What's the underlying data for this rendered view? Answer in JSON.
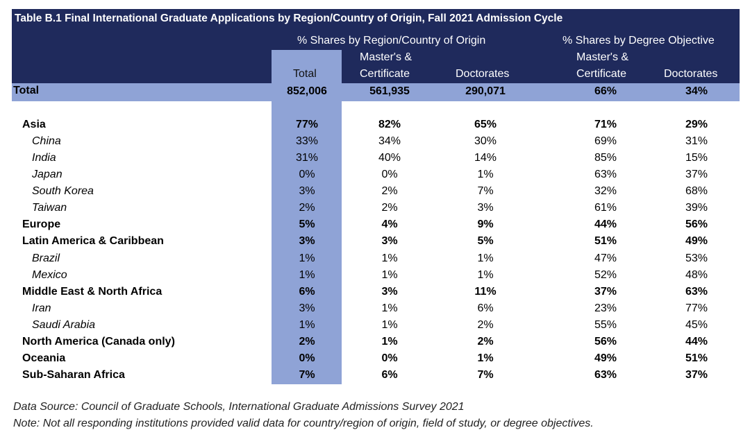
{
  "title": "Table B.1 Final International Graduate Applications by Region/Country of Origin, Fall 2021 Admission Cycle",
  "headers": {
    "group_region": "% Shares by Region/Country of Origin",
    "group_degree": "% Shares by Degree Objective",
    "total": "Total",
    "masters_line1": "Master's &",
    "masters_line2": "Certificate",
    "doctorates": "Doctorates"
  },
  "total_row": {
    "label": "Total",
    "values": [
      "852,006",
      "561,935",
      "290,071",
      "66%",
      "34%"
    ]
  },
  "rows": [
    {
      "label": "Asia",
      "bold": true,
      "values": [
        "77%",
        "82%",
        "65%",
        "71%",
        "29%"
      ]
    },
    {
      "label": "China",
      "bold": false,
      "values": [
        "33%",
        "34%",
        "30%",
        "69%",
        "31%"
      ]
    },
    {
      "label": "India",
      "bold": false,
      "values": [
        "31%",
        "40%",
        "14%",
        "85%",
        "15%"
      ]
    },
    {
      "label": "Japan",
      "bold": false,
      "values": [
        "0%",
        "0%",
        "1%",
        "63%",
        "37%"
      ]
    },
    {
      "label": "South Korea",
      "bold": false,
      "values": [
        "3%",
        "2%",
        "7%",
        "32%",
        "68%"
      ]
    },
    {
      "label": "Taiwan",
      "bold": false,
      "values": [
        "2%",
        "2%",
        "3%",
        "61%",
        "39%"
      ]
    },
    {
      "label": "Europe",
      "bold": true,
      "values": [
        "5%",
        "4%",
        "9%",
        "44%",
        "56%"
      ]
    },
    {
      "label": "Latin America & Caribbean",
      "bold": true,
      "values": [
        "3%",
        "3%",
        "5%",
        "51%",
        "49%"
      ]
    },
    {
      "label": "Brazil",
      "bold": false,
      "values": [
        "1%",
        "1%",
        "1%",
        "47%",
        "53%"
      ]
    },
    {
      "label": "Mexico",
      "bold": false,
      "values": [
        "1%",
        "1%",
        "1%",
        "52%",
        "48%"
      ]
    },
    {
      "label": "Middle East & North Africa",
      "bold": true,
      "values": [
        "6%",
        "3%",
        "11%",
        "37%",
        "63%"
      ]
    },
    {
      "label": "Iran",
      "bold": false,
      "values": [
        "3%",
        "1%",
        "6%",
        "23%",
        "77%"
      ]
    },
    {
      "label": "Saudi Arabia",
      "bold": false,
      "values": [
        "1%",
        "1%",
        "2%",
        "55%",
        "45%"
      ]
    },
    {
      "label": "North America (Canada only)",
      "bold": true,
      "values": [
        "2%",
        "1%",
        "2%",
        "56%",
        "44%"
      ]
    },
    {
      "label": "Oceania",
      "bold": true,
      "values": [
        "0%",
        "0%",
        "1%",
        "49%",
        "51%"
      ]
    },
    {
      "label": "Sub-Saharan Africa",
      "bold": true,
      "values": [
        "7%",
        "6%",
        "7%",
        "63%",
        "37%"
      ]
    }
  ],
  "footnotes": {
    "source": "Data Source: Council of Graduate Schools, International Graduate Admissions Survey 2021",
    "note": "Note: Not all responding institutions provided valid data for country/region of origin, field of study, or degree objectives."
  },
  "colors": {
    "header_bg": "#1f2a5c",
    "highlight_bg": "#8fa3d6"
  }
}
